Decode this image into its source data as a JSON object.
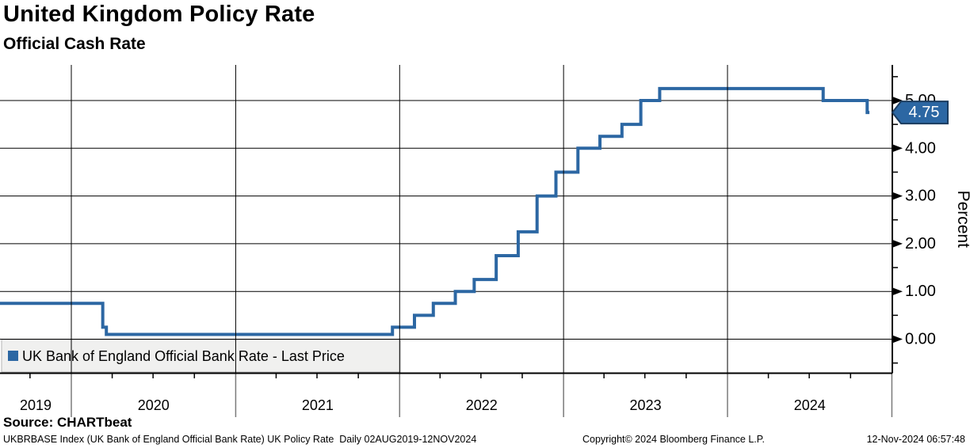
{
  "header": {
    "title": "United Kingdom Policy Rate",
    "subtitle": "Official Cash Rate"
  },
  "source_label": "Source: CHARTbeat",
  "footer": {
    "left": "UKBRBASE Index (UK Bank of England Official Bank Rate) UK Policy Rate  Daily 02AUG2019-12NOV2024",
    "center": "Copyright© 2024 Bloomberg Finance L.P.",
    "right": "12-Nov-2024 06:57:48"
  },
  "chart_data": {
    "type": "line",
    "step": "after",
    "title": "United Kingdom Policy Rate",
    "subtitle": "Official Cash Rate",
    "ylabel": "Percent",
    "ylim": [
      -0.7,
      5.75
    ],
    "y_ticks": [
      "0.00",
      "1.00",
      "2.00",
      "3.00",
      "4.00",
      "5.00"
    ],
    "y_minor_step": 0.5,
    "grid": true,
    "x_axis": {
      "start": "2019-08-02",
      "end": "2024-11-12",
      "year_labels": [
        "2019",
        "2020",
        "2021",
        "2022",
        "2023",
        "2024"
      ],
      "minor_tick": "quarterly"
    },
    "last_price": "4.75",
    "line_color": "#2c67a3",
    "legend": {
      "label": "UK Bank of England Official Bank Rate - Last Price",
      "position": "bottom-left",
      "background": "#f0f0ef"
    },
    "series": [
      {
        "name": "UK Bank of England Official Bank Rate - Last Price",
        "color": "#2c67a3",
        "points": [
          {
            "date": "2019-08-02",
            "value": 0.75
          },
          {
            "date": "2020-03-11",
            "value": 0.25
          },
          {
            "date": "2020-03-19",
            "value": 0.1
          },
          {
            "date": "2021-12-16",
            "value": 0.25
          },
          {
            "date": "2022-02-03",
            "value": 0.5
          },
          {
            "date": "2022-03-17",
            "value": 0.75
          },
          {
            "date": "2022-05-05",
            "value": 1.0
          },
          {
            "date": "2022-06-16",
            "value": 1.25
          },
          {
            "date": "2022-08-04",
            "value": 1.75
          },
          {
            "date": "2022-09-22",
            "value": 2.25
          },
          {
            "date": "2022-11-03",
            "value": 3.0
          },
          {
            "date": "2022-12-15",
            "value": 3.5
          },
          {
            "date": "2023-02-02",
            "value": 4.0
          },
          {
            "date": "2023-03-23",
            "value": 4.25
          },
          {
            "date": "2023-05-11",
            "value": 4.5
          },
          {
            "date": "2023-06-22",
            "value": 5.0
          },
          {
            "date": "2023-08-03",
            "value": 5.25
          },
          {
            "date": "2024-08-01",
            "value": 5.0
          },
          {
            "date": "2024-11-07",
            "value": 4.75
          },
          {
            "date": "2024-11-12",
            "value": 4.75
          }
        ]
      }
    ]
  }
}
